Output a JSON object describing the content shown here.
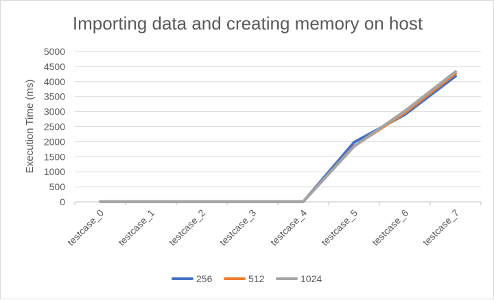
{
  "chart_data": {
    "type": "line",
    "title": "Importing data and creating memory on host",
    "xlabel": "",
    "ylabel": "Execution Time (ms)",
    "ylim": [
      0,
      5000
    ],
    "ytick_step": 500,
    "grid": true,
    "legend_position": "bottom",
    "categories": [
      "testcase_0",
      "testcase_1",
      "testcase_2",
      "testcase_3",
      "testcase_4",
      "testcase_5",
      "testcase_6",
      "testcase_7"
    ],
    "series": [
      {
        "name": "256",
        "color": "#4472C4",
        "values": [
          5,
          5,
          5,
          5,
          5,
          1980,
          2900,
          4180
        ]
      },
      {
        "name": "512",
        "color": "#ED7D31",
        "values": [
          5,
          5,
          5,
          5,
          5,
          1850,
          2960,
          4270
        ]
      },
      {
        "name": "1024",
        "color": "#A5A5A5",
        "values": [
          5,
          5,
          5,
          5,
          5,
          1840,
          3020,
          4330
        ]
      }
    ]
  }
}
